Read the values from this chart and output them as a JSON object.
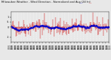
{
  "title": "Milwaukee Weather - Wind Direction - Normalized and Avg (24 hr)",
  "background_color": "#e8e8e8",
  "plot_bg_color": "#e8e8e8",
  "grid_color": "#ffffff",
  "line_color_red": "#cc0000",
  "line_color_blue": "#0000cc",
  "ylim": [
    -1.5,
    1.5
  ],
  "yticks": [
    1.0,
    0.5,
    0.0,
    -1.0
  ],
  "ytick_labels": [
    "1",
    ".5",
    "0",
    "-1"
  ],
  "num_points": 250,
  "seed": 42,
  "title_fontsize": 2.8,
  "tick_fontsize": 2.5
}
